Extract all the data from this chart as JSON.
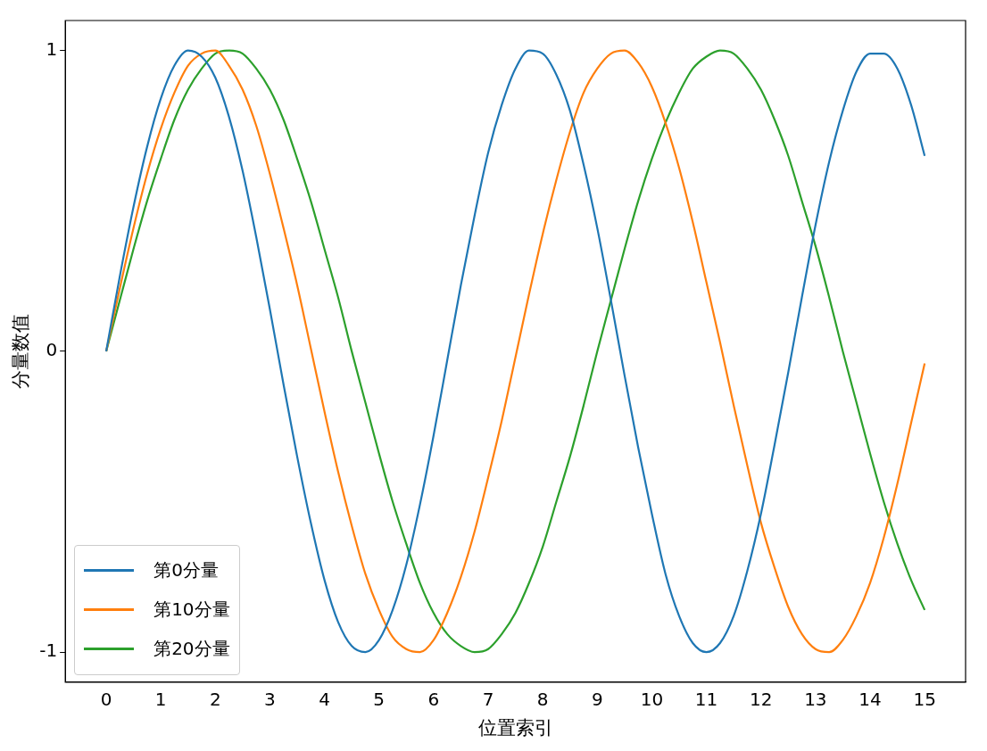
{
  "chart_data": {
    "type": "line",
    "xlabel": "位置索引",
    "ylabel": "分量数值",
    "x": [
      0,
      0.25,
      0.5,
      0.75,
      1,
      1.25,
      1.5,
      1.75,
      2,
      2.25,
      2.5,
      2.75,
      3,
      3.25,
      3.5,
      3.75,
      4,
      4.25,
      4.5,
      4.75,
      5,
      5.25,
      5.5,
      5.75,
      6,
      6.25,
      6.5,
      6.75,
      7,
      7.25,
      7.5,
      7.75,
      8,
      8.25,
      8.5,
      8.75,
      9,
      9.25,
      9.5,
      9.75,
      10,
      10.25,
      10.5,
      10.75,
      11,
      11.25,
      11.5,
      11.75,
      12,
      12.25,
      12.5,
      12.75,
      13,
      13.25,
      13.5,
      13.75,
      14,
      14.25,
      14.5,
      14.75,
      15
    ],
    "series": [
      {
        "name": "第0分量",
        "color": "#1f77b4",
        "values": [
          0,
          0.25,
          0.48,
          0.68,
          0.84,
          0.95,
          1.0,
          0.98,
          0.91,
          0.78,
          0.6,
          0.38,
          0.14,
          -0.11,
          -0.35,
          -0.57,
          -0.76,
          -0.9,
          -0.98,
          -1.0,
          -0.96,
          -0.86,
          -0.71,
          -0.51,
          -0.28,
          -0.03,
          0.22,
          0.45,
          0.66,
          0.82,
          0.94,
          1.0,
          0.99,
          0.92,
          0.8,
          0.62,
          0.41,
          0.17,
          -0.08,
          -0.32,
          -0.54,
          -0.74,
          -0.88,
          -0.97,
          -1.0,
          -0.97,
          -0.88,
          -0.73,
          -0.54,
          -0.31,
          -0.07,
          0.18,
          0.42,
          0.63,
          0.8,
          0.93,
          0.99,
          0.99,
          0.94,
          0.82,
          0.65
        ]
      },
      {
        "name": "第10分量",
        "color": "#ff7f0e",
        "values": [
          0,
          0.21,
          0.41,
          0.59,
          0.74,
          0.86,
          0.95,
          0.99,
          1.0,
          0.95,
          0.87,
          0.75,
          0.59,
          0.41,
          0.22,
          0.01,
          -0.2,
          -0.4,
          -0.58,
          -0.74,
          -0.86,
          -0.95,
          -0.99,
          -1.0,
          -0.96,
          -0.87,
          -0.75,
          -0.6,
          -0.42,
          -0.23,
          -0.02,
          0.19,
          0.39,
          0.57,
          0.73,
          0.86,
          0.94,
          0.99,
          1.0,
          0.96,
          0.88,
          0.76,
          0.61,
          0.43,
          0.23,
          0.03,
          -0.18,
          -0.38,
          -0.57,
          -0.72,
          -0.85,
          -0.94,
          -0.99,
          -1.0,
          -0.96,
          -0.88,
          -0.77,
          -0.62,
          -0.44,
          -0.24,
          -0.04
        ]
      },
      {
        "name": "第20分量",
        "color": "#2ca02c",
        "values": [
          0,
          0.17,
          0.34,
          0.5,
          0.64,
          0.77,
          0.87,
          0.94,
          0.99,
          1.0,
          0.99,
          0.94,
          0.87,
          0.77,
          0.64,
          0.5,
          0.34,
          0.18,
          0,
          -0.17,
          -0.34,
          -0.5,
          -0.64,
          -0.77,
          -0.87,
          -0.94,
          -0.98,
          -1.0,
          -0.99,
          -0.94,
          -0.87,
          -0.77,
          -0.65,
          -0.5,
          -0.35,
          -0.18,
          0,
          0.17,
          0.34,
          0.5,
          0.64,
          0.76,
          0.86,
          0.94,
          0.98,
          1.0,
          0.99,
          0.94,
          0.87,
          0.77,
          0.65,
          0.5,
          0.35,
          0.18,
          0,
          -0.17,
          -0.34,
          -0.5,
          -0.64,
          -0.76,
          -0.86
        ]
      }
    ],
    "xlim": [
      -0.75,
      15.75
    ],
    "ylim": [
      -1.1,
      1.1
    ],
    "xticks": [
      0,
      1,
      2,
      3,
      4,
      5,
      6,
      7,
      8,
      9,
      10,
      11,
      12,
      13,
      14,
      15
    ],
    "yticks": [
      -1,
      0,
      1
    ],
    "grid": false,
    "legend": "bottom left",
    "marker": "none",
    "line_style": "solid"
  }
}
